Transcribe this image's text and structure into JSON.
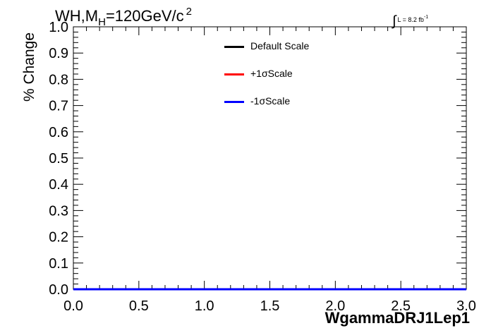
{
  "title": {
    "main": "WH,M",
    "sub": "H",
    "rest": "=120GeV/c",
    "sup": "2"
  },
  "lumi": {
    "symbol": "∫",
    "text": "L = 8.2 fb",
    "sup": "-1"
  },
  "chart_data": {
    "type": "line",
    "xlabel": "WgammaDRJ1Lep1",
    "ylabel": "% Change",
    "xlim": [
      0.0,
      3.0
    ],
    "ylim": [
      0.0,
      1.0
    ],
    "x_ticks": [
      "0.0",
      "0.5",
      "1.0",
      "1.5",
      "2.0",
      "2.5",
      "3.0"
    ],
    "y_ticks": [
      "0.0",
      "0.1",
      "0.2",
      "0.3",
      "0.4",
      "0.5",
      "0.6",
      "0.7",
      "0.8",
      "0.9",
      "1.0"
    ],
    "grid": false,
    "legend_position": "top-center",
    "series": [
      {
        "name": "Default Scale",
        "color": "#000000",
        "x": [
          0.0,
          3.0
        ],
        "values": [
          0.0,
          0.0
        ]
      },
      {
        "name": "+1σScale",
        "color": "#ff0000",
        "x": [
          0.0,
          3.0
        ],
        "values": [
          0.0,
          0.0
        ]
      },
      {
        "name": "-1σScale",
        "color": "#0000ff",
        "x": [
          0.0,
          3.0
        ],
        "values": [
          0.0,
          0.0
        ]
      }
    ]
  }
}
